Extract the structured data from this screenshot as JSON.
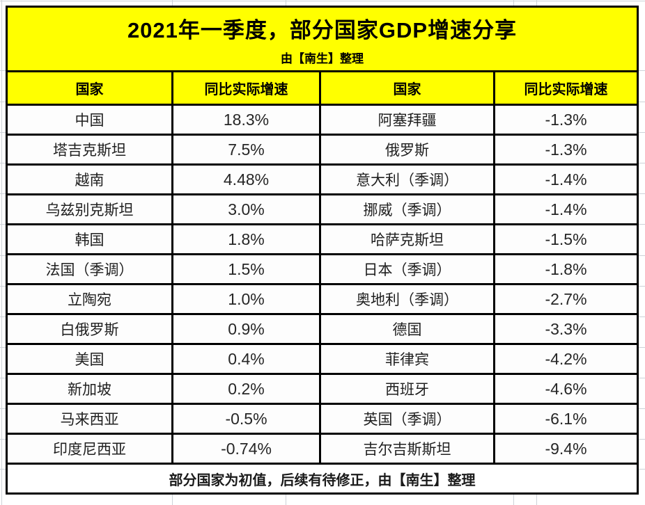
{
  "colors": {
    "header_bg": "#ffff00",
    "cell_bg": "#ffffff",
    "border": "#000000",
    "country_text": "#1f1f1f",
    "value_text": "#262626",
    "margin_gridline": "#cdd2d8"
  },
  "chart_data": {
    "type": "table",
    "title": "2021年一季度，部分国家GDP增速分享",
    "subtitle": "由【南生】整理",
    "columns": [
      "国家",
      "同比实际增速",
      "国家",
      "同比实际增速"
    ],
    "rows": [
      [
        "中国",
        "18.3%",
        "阿塞拜疆",
        "-1.3%"
      ],
      [
        "塔吉克斯坦",
        "7.5%",
        "俄罗斯",
        "-1.3%"
      ],
      [
        "越南",
        "4.48%",
        "意大利（季调）",
        "-1.4%"
      ],
      [
        "乌兹别克斯坦",
        "3.0%",
        "挪威（季调）",
        "-1.4%"
      ],
      [
        "韩国",
        "1.8%",
        "哈萨克斯坦",
        "-1.5%"
      ],
      [
        "法国（季调）",
        "1.5%",
        "日本（季调）",
        "-1.8%"
      ],
      [
        "立陶宛",
        "1.0%",
        "奥地利（季调）",
        "-2.7%"
      ],
      [
        "白俄罗斯",
        "0.9%",
        "德国",
        "-3.3%"
      ],
      [
        "美国",
        "0.4%",
        "菲律宾",
        "-4.2%"
      ],
      [
        "新加坡",
        "0.2%",
        "西班牙",
        "-4.6%"
      ],
      [
        "马来西亚",
        "-0.5%",
        "英国（季调）",
        "-6.1%"
      ],
      [
        "印度尼西亚",
        "-0.74%",
        "吉尔吉斯斯坦",
        "-9.4%"
      ]
    ],
    "footer": "部分国家为初值，后续有待修正，由【南生】整理"
  }
}
